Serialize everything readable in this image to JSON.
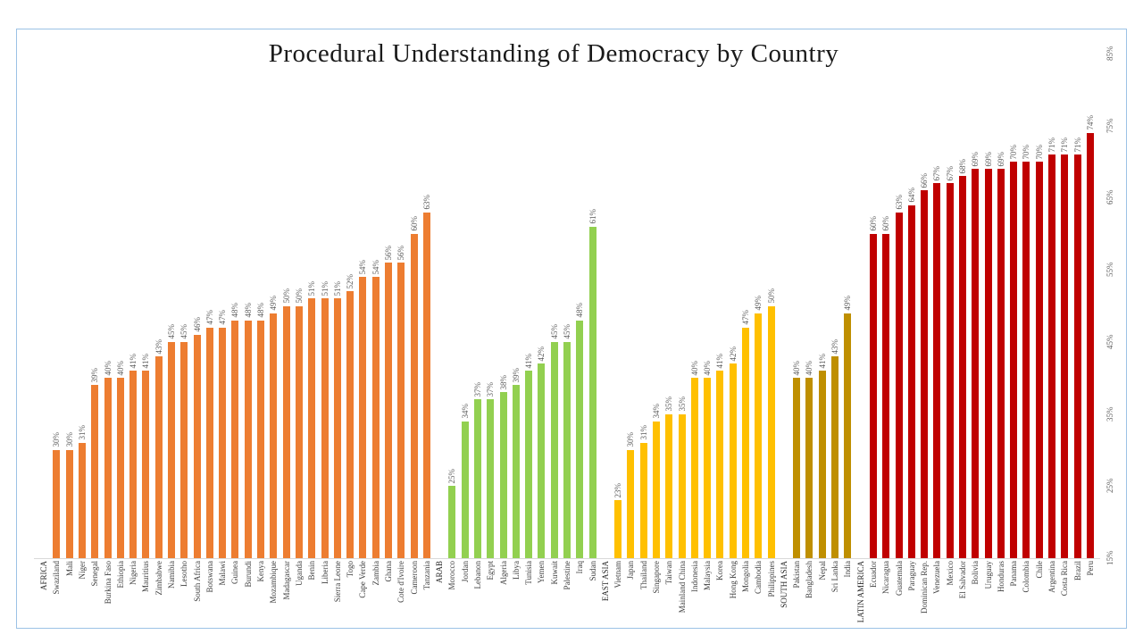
{
  "title": "Procedural Understanding of Democracy by Country",
  "chart_data": {
    "type": "bar",
    "title": "Procedural Understanding of Democracy by Country",
    "xlabel": "",
    "ylabel": "",
    "value_suffix": "%",
    "axis": {
      "min": 15,
      "max": 85,
      "tick_side": "right",
      "tick_values": [
        15,
        25,
        35,
        45,
        55,
        65,
        75,
        85
      ],
      "ticks": [
        "15%",
        "25%",
        "35%",
        "45%",
        "55%",
        "65%",
        "75%",
        "85%"
      ]
    },
    "layout": {
      "grid": false,
      "bar_labels_rotated": true,
      "x_labels_rotated": true,
      "label_color": "#595959",
      "axis_line_color": "#d9d9d9",
      "frame_color": "#9cc2e5"
    },
    "groups": [
      {
        "label": "AFRICA",
        "color": "#ED7D31",
        "countries": [
          "Swaziland",
          "Mali",
          "Niger",
          "Senegal",
          "Burkina Faso",
          "Ethiopia",
          "Nigeria",
          "Mauritius",
          "Zimbabwe",
          "Namibia",
          "Lesotho",
          "South Africa",
          "Botswana",
          "Malawi",
          "Guinea",
          "Burundi",
          "Kenya",
          "Mozambique",
          "Madagascar",
          "Uganda",
          "Benin",
          "Liberia",
          "Sierra Leone",
          "Togo",
          "Cape Verde",
          "Zambia",
          "Ghana",
          "Cote d'Ivoire",
          "Cameroon",
          "Tanzania"
        ],
        "values": [
          30,
          30,
          31,
          39,
          40,
          40,
          41,
          41,
          43,
          45,
          45,
          46,
          47,
          47,
          48,
          48,
          48,
          49,
          50,
          50,
          51,
          51,
          51,
          52,
          54,
          54,
          56,
          56,
          60,
          63
        ]
      },
      {
        "label": "ARAB",
        "color": "#92D050",
        "countries": [
          "Morocco",
          "Jordan",
          "Lebanon",
          "Egypt",
          "Algeria",
          "Libya",
          "Tunisia",
          "Yemen",
          "Kuwait",
          "Palestine",
          "Iraq",
          "Sudan"
        ],
        "values": [
          25,
          34,
          37,
          37,
          38,
          39,
          41,
          42,
          45,
          45,
          48,
          61
        ]
      },
      {
        "label": "EAST ASIA",
        "color": "#FFC000",
        "countries": [
          "Vietnam",
          "Japan",
          "Thailand",
          "Singapore",
          "Taiwan",
          "Mainland China",
          "Indonesia",
          "Malaysia",
          "Korea",
          "Hong Kong",
          "Mongolia",
          "Cambodia",
          "Philippines"
        ],
        "values": [
          23,
          30,
          31,
          34,
          35,
          35,
          40,
          40,
          41,
          42,
          47,
          49,
          50
        ]
      },
      {
        "label": "SOUTH ASIA",
        "color": "#BF8F00",
        "countries": [
          "Pakistan",
          "Bangladesh",
          "Nepal",
          "Sri Lanka",
          "India"
        ],
        "values": [
          40,
          40,
          41,
          43,
          49
        ]
      },
      {
        "label": "LATIN AMERICA",
        "color": "#C00000",
        "countries": [
          "Ecuador",
          "Nicaragua",
          "Guatemala",
          "Paraguay",
          "Dominican Rep.",
          "Venezuela",
          "Mexico",
          "El Salvador",
          "Bolivia",
          "Uruguay",
          "Honduras",
          "Panama",
          "Colombia",
          "Chile",
          "Argentina",
          "Costa Rica",
          "Brazil",
          "Peru"
        ],
        "values": [
          60,
          60,
          63,
          64,
          66,
          67,
          67,
          68,
          69,
          69,
          69,
          70,
          70,
          70,
          71,
          71,
          71,
          74
        ]
      }
    ]
  }
}
